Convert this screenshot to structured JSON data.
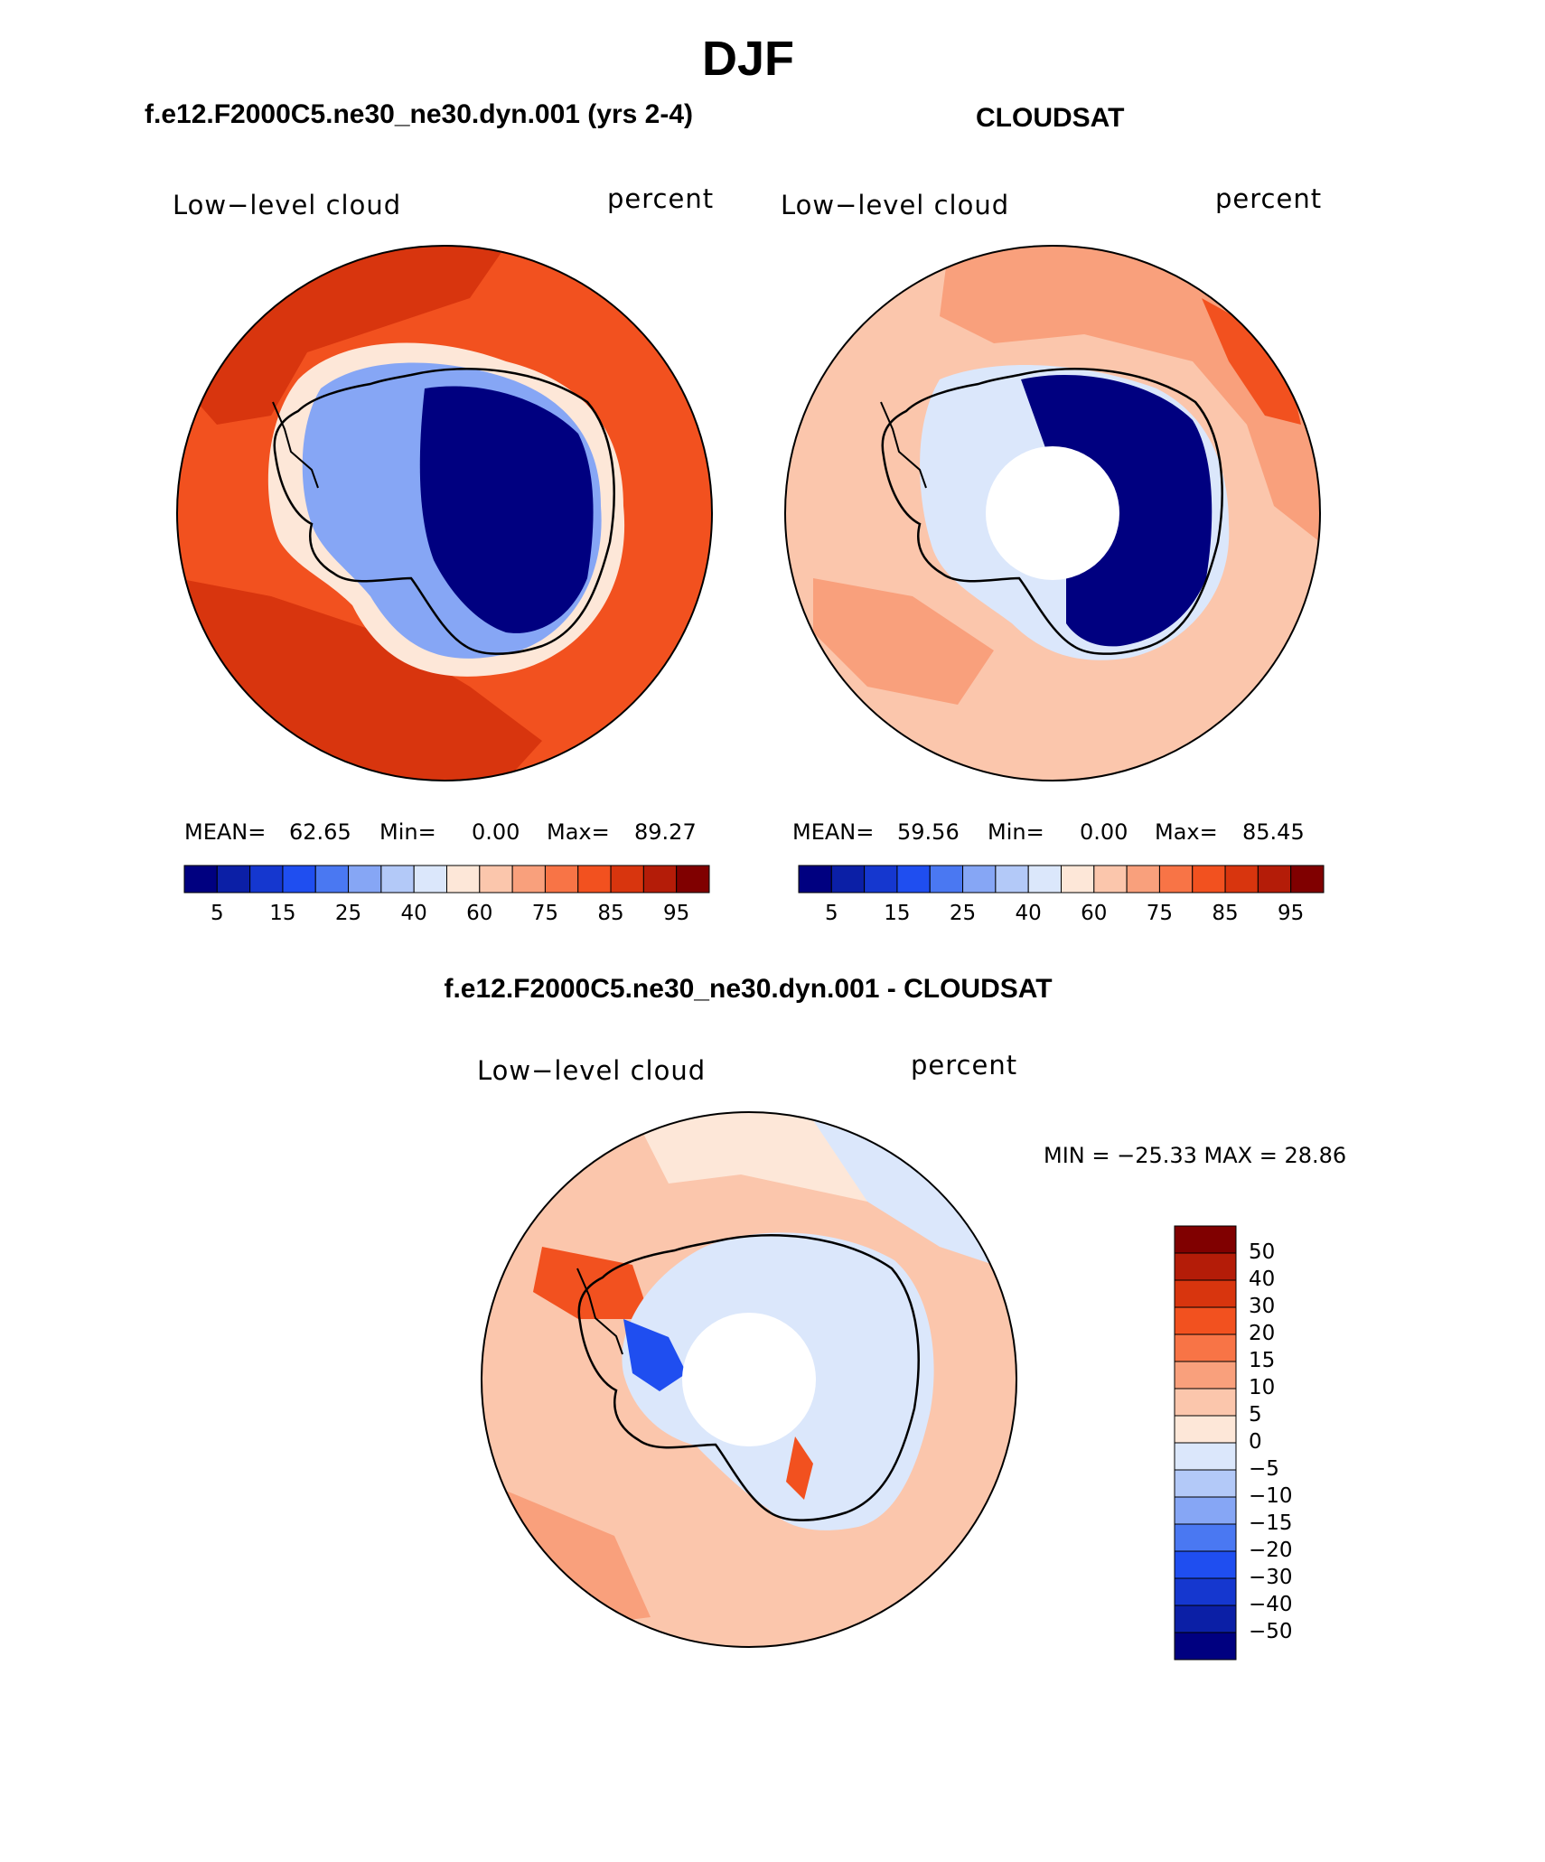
{
  "title": "DJF",
  "panels": [
    {
      "id": "model",
      "header": "f.e12.F2000C5.ne30_ne30.dyn.001 (yrs 2-4)",
      "variable": "Low−level cloud",
      "units": "percent",
      "stats": {
        "mean_label": "MEAN=",
        "mean": "62.65",
        "min_label": "Min=",
        "min": "0.00",
        "max_label": "Max=",
        "max": "89.27"
      }
    },
    {
      "id": "obs",
      "header": "CLOUDSAT",
      "variable": "Low−level cloud",
      "units": "percent",
      "stats": {
        "mean_label": "MEAN=",
        "mean": "59.56",
        "min_label": "Min=",
        "min": "0.00",
        "max_label": "Max=",
        "max": "85.45"
      }
    },
    {
      "id": "diff",
      "header": "f.e12.F2000C5.ne30_ne30.dyn.001 - CLOUDSAT",
      "variable": "Low−level cloud",
      "units": "percent",
      "minmax": "MIN = −25.33 MAX =   28.86"
    }
  ],
  "colorbar_abs": {
    "colors": [
      "#000080",
      "#0b1fa6",
      "#1537cf",
      "#1f4ef0",
      "#4a78f2",
      "#86a6f5",
      "#b3c9f8",
      "#dbe7fb",
      "#fde7d8",
      "#fbc6ac",
      "#f9a07c",
      "#f87446",
      "#f2511f",
      "#d8350e",
      "#b41c08",
      "#800000"
    ],
    "tick_labels": [
      "5",
      "15",
      "25",
      "40",
      "60",
      "75",
      "85",
      "95"
    ]
  },
  "colorbar_diff": {
    "colors_top_to_bottom": [
      "#800000",
      "#b41c08",
      "#d8350e",
      "#f2511f",
      "#f87446",
      "#f9a07c",
      "#fbc6ac",
      "#fde7d8",
      "#dbe7fb",
      "#b3c9f8",
      "#86a6f5",
      "#4a78f2",
      "#1f4ef0",
      "#1537cf",
      "#0b1fa6",
      "#000080"
    ],
    "tick_labels": [
      "50",
      "40",
      "30",
      "20",
      "15",
      "10",
      "5",
      "0",
      "−5",
      "−10",
      "−15",
      "−20",
      "−30",
      "−40",
      "−50"
    ]
  },
  "map_legend": {
    "ocean_model": "#f2511f",
    "ocean_model_high": "#d8350e",
    "ocean_obs": "#fbc6ac",
    "ocean_obs_mid": "#f9a07c",
    "continent_low": "#000080",
    "diff_ocean": "#fbc6ac",
    "diff_land": "#dbe7fb"
  }
}
